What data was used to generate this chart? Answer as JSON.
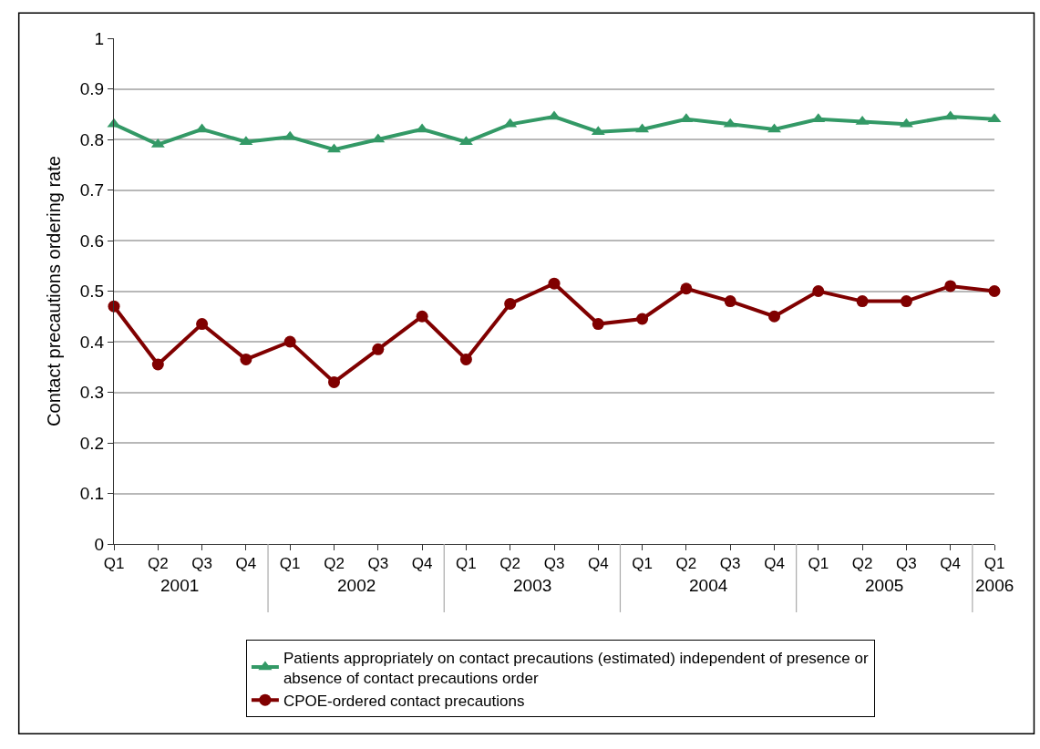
{
  "chart_data": {
    "type": "line",
    "ylabel": "Contact precautions ordering rate",
    "categories": [
      "Q1",
      "Q2",
      "Q3",
      "Q4",
      "Q1",
      "Q2",
      "Q3",
      "Q4",
      "Q1",
      "Q2",
      "Q3",
      "Q4",
      "Q1",
      "Q2",
      "Q3",
      "Q4",
      "Q1",
      "Q2",
      "Q3",
      "Q4",
      "Q1"
    ],
    "series": [
      {
        "name": "Patients appropriately on contact precautions (estimated) independent of presence or absence of contact precautions order",
        "color": "#339966",
        "marker": "triangle",
        "values": [
          0.83,
          0.79,
          0.82,
          0.795,
          0.805,
          0.78,
          0.8,
          0.82,
          0.795,
          0.83,
          0.845,
          0.815,
          0.82,
          0.84,
          0.83,
          0.82,
          0.84,
          0.835,
          0.83,
          0.845,
          0.84
        ]
      },
      {
        "name": "CPOE-ordered contact precautions",
        "color": "#800000",
        "marker": "circle",
        "values": [
          0.47,
          0.355,
          0.435,
          0.365,
          0.4,
          0.32,
          0.385,
          0.45,
          0.365,
          0.475,
          0.515,
          0.435,
          0.445,
          0.505,
          0.48,
          0.45,
          0.5,
          0.48,
          0.48,
          0.51,
          0.5
        ]
      }
    ],
    "annotations": [
      "2001",
      "2002",
      "2003",
      "2004",
      "2005",
      "2006"
    ],
    "ylim": [
      0,
      1
    ],
    "yticks": [
      0,
      0.1,
      0.2,
      0.3,
      0.4,
      0.5,
      0.6,
      0.7,
      0.8,
      0.9,
      1
    ],
    "grid": "y",
    "legend": "bottom",
    "line_style": "solid"
  }
}
